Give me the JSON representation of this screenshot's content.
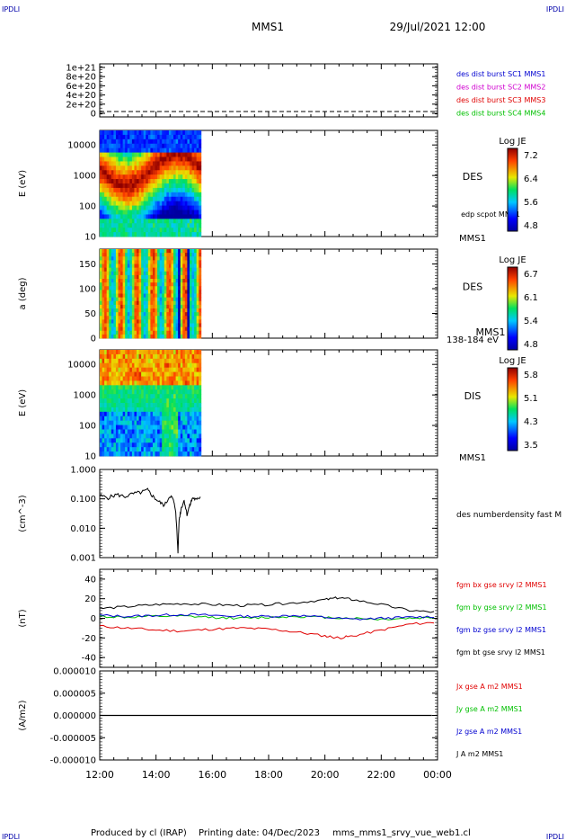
{
  "header": {
    "logo_left": "IPDLI",
    "logo_right": "IPDLI",
    "title": "MMS1",
    "datetime": "29/Jul/2021 12:00"
  },
  "footer": {
    "produced_by": "Produced by cl (IRAP)",
    "printing_date": "Printing date: 04/Dec/2023",
    "filename": "mms_mms1_srvy_vue_web1.cl",
    "logo_left": "IPDLI",
    "logo_right": "IPDLI"
  },
  "x_axis": {
    "ticks": [
      "12:00",
      "14:00",
      "16:00",
      "18:00",
      "20:00",
      "22:00",
      "00:00"
    ]
  },
  "colors": {
    "red": "#e00000",
    "green": "#00c000",
    "blue": "#0000d0",
    "magenta": "#d000d0",
    "black": "#000000"
  },
  "chart_data": [
    {
      "type": "line",
      "panel": 1,
      "ylabel": "",
      "yticks": [
        "1e+21",
        "8e+20",
        "6e+20",
        "4e+20",
        "2e+20",
        "0"
      ],
      "legend": [
        {
          "label": "des dist burst SC1 MMS1",
          "color": "#0000d0"
        },
        {
          "label": "des dist burst SC2 MMS2",
          "color": "#d000d0"
        },
        {
          "label": "des dist burst SC3 MMS3",
          "color": "#e00000"
        },
        {
          "label": "des dist burst SC4 MMS4",
          "color": "#00c000"
        }
      ],
      "series": [
        {
          "x": [
            12,
            24
          ],
          "values": [
            0,
            0
          ]
        }
      ]
    },
    {
      "type": "heatmap",
      "panel": 2,
      "ylabel": "E (eV)",
      "yticks": [
        "10000",
        "1000",
        "100",
        "10"
      ],
      "ylim": [
        10,
        30000
      ],
      "xrange_hours": [
        12,
        15.6
      ],
      "label": "DES",
      "sublabel": "edp scpot MMS1",
      "bottom_label": "MMS1",
      "colorbar": {
        "title": "Log JE",
        "ticks": [
          "7.2",
          "6.4",
          "5.6",
          "4.8"
        ]
      }
    },
    {
      "type": "heatmap",
      "panel": 3,
      "ylabel": "a (deg)",
      "yticks": [
        "150",
        "100",
        "50",
        "0"
      ],
      "ylim": [
        0,
        180
      ],
      "xrange_hours": [
        12,
        15.6
      ],
      "label": "DES",
      "sublabel": "MMS1",
      "bottom_label": "138-184 eV",
      "colorbar": {
        "title": "Log JE",
        "ticks": [
          "6.7",
          "6.1",
          "5.4",
          "4.8"
        ]
      }
    },
    {
      "type": "heatmap",
      "panel": 4,
      "ylabel": "E (eV)",
      "yticks": [
        "10000",
        "1000",
        "100",
        "10"
      ],
      "ylim": [
        10,
        30000
      ],
      "xrange_hours": [
        12,
        15.6
      ],
      "label": "DIS",
      "bottom_label": "MMS1",
      "colorbar": {
        "title": "Log JE",
        "ticks": [
          "5.8",
          "5.1",
          "4.3",
          "3.5"
        ]
      }
    },
    {
      "type": "line",
      "panel": 5,
      "ylabel": "(cm^-3)",
      "yticks": [
        "1.000",
        "0.100",
        "0.010",
        "0.001"
      ],
      "ylim": [
        0.001,
        1.0
      ],
      "legend": [
        {
          "label": "des numberdensity fast M",
          "color": "#000000"
        }
      ],
      "series": [
        {
          "name": "des numberdensity fast M",
          "x": [
            12.0,
            12.3,
            12.6,
            12.9,
            13.2,
            13.5,
            13.7,
            13.9,
            14.1,
            14.3,
            14.5,
            14.6,
            14.7,
            14.78,
            14.82,
            14.9,
            15.0,
            15.1,
            15.2,
            15.3,
            15.45,
            15.6
          ],
          "values": [
            0.13,
            0.11,
            0.14,
            0.12,
            0.15,
            0.17,
            0.2,
            0.12,
            0.08,
            0.06,
            0.13,
            0.1,
            0.04,
            0.0015,
            0.02,
            0.05,
            0.09,
            0.03,
            0.06,
            0.11,
            0.09,
            0.13
          ]
        }
      ]
    },
    {
      "type": "line",
      "panel": 6,
      "ylabel": "(nT)",
      "yticks": [
        "40",
        "20",
        "0",
        "-20",
        "-40"
      ],
      "ylim": [
        -50,
        50
      ],
      "legend": [
        {
          "label": "fgm bx gse srvy l2 MMS1",
          "color": "#e00000"
        },
        {
          "label": "fgm by gse srvy l2 MMS1",
          "color": "#00c000"
        },
        {
          "label": "fgm bz gse srvy l2 MMS1",
          "color": "#0000d0"
        },
        {
          "label": "fgm bt gse srvy l2 MMS1",
          "color": "#000000"
        }
      ],
      "series": [
        {
          "name": "fgm bx gse srvy l2 MMS1",
          "color": "#e00000",
          "x": [
            12,
            13,
            14,
            15,
            16,
            17,
            18,
            19,
            20,
            20.5,
            21,
            22,
            23,
            24
          ],
          "values": [
            -8,
            -10,
            -12,
            -13,
            -11,
            -10,
            -11,
            -14,
            -18,
            -20,
            -18,
            -12,
            -6,
            -4
          ]
        },
        {
          "name": "fgm by gse srvy l2 MMS1",
          "color": "#00c000",
          "x": [
            12,
            13,
            14,
            15,
            16,
            17,
            18,
            19,
            20,
            21,
            22,
            23,
            24
          ],
          "values": [
            2,
            1,
            2,
            2,
            1,
            0,
            1,
            2,
            1,
            0,
            -1,
            0,
            1
          ]
        },
        {
          "name": "fgm bz gse srvy l2 MMS1",
          "color": "#0000d0",
          "x": [
            12,
            13,
            14,
            15,
            16,
            17,
            18,
            19,
            20,
            21,
            22,
            23,
            24
          ],
          "values": [
            3,
            2,
            3,
            4,
            3,
            2,
            2,
            3,
            1,
            -1,
            0,
            1,
            2
          ]
        },
        {
          "name": "fgm bt gse srvy l2 MMS1",
          "color": "#000000",
          "x": [
            12,
            13,
            14,
            15,
            16,
            17,
            18,
            19,
            20,
            20.5,
            21,
            22,
            23,
            24
          ],
          "values": [
            10,
            12,
            14,
            15,
            14,
            13,
            14,
            16,
            19,
            21,
            19,
            14,
            8,
            6
          ]
        }
      ]
    },
    {
      "type": "line",
      "panel": 7,
      "ylabel": "(A/m2)",
      "yticks": [
        "0.000010",
        "0.000005",
        "0.000000",
        "-0.000005",
        "-0.000010"
      ],
      "ylim": [
        -1e-05,
        1e-05
      ],
      "legend": [
        {
          "label": "Jx gse A m2 MMS1",
          "color": "#e00000"
        },
        {
          "label": "Jy gse A m2 MMS1",
          "color": "#00c000"
        },
        {
          "label": "Jz gse A m2 MMS1",
          "color": "#0000d0"
        },
        {
          "label": "J A m2 MMS1",
          "color": "#000000"
        }
      ],
      "series": [
        {
          "name": "J A m2 MMS1",
          "color": "#000000",
          "x": [
            12,
            24
          ],
          "values": [
            0,
            0
          ]
        }
      ]
    }
  ]
}
